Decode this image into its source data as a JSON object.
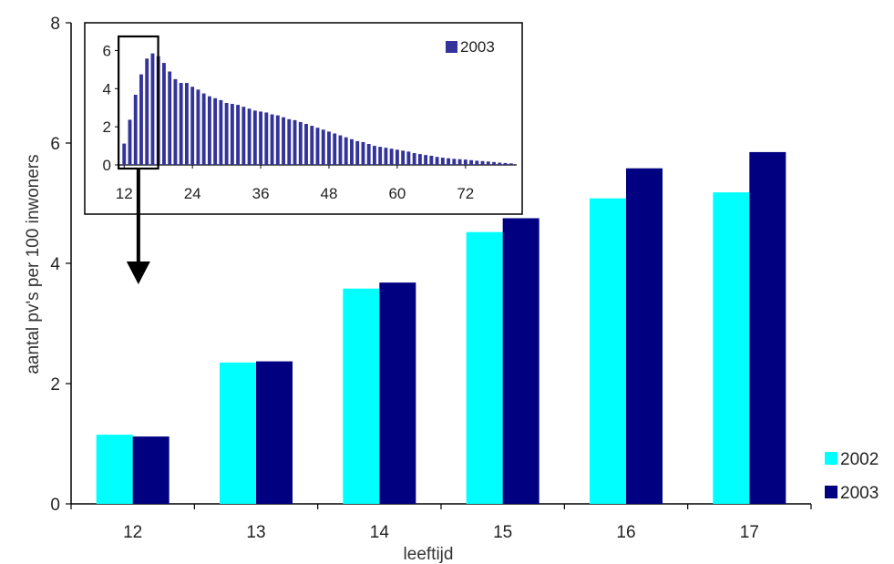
{
  "chart_data": [
    {
      "type": "bar",
      "categories": [
        "12",
        "13",
        "14",
        "15",
        "16",
        "17"
      ],
      "series": [
        {
          "name": "2002",
          "color": "#00FFFF",
          "values": [
            1.15,
            2.35,
            3.58,
            4.52,
            5.08,
            5.18
          ]
        },
        {
          "name": "2003",
          "color": "#000080",
          "values": [
            1.12,
            2.37,
            3.68,
            4.75,
            5.58,
            5.85
          ]
        }
      ],
      "xlabel": "leeftijd",
      "ylabel": "aantal pv's per 100 inwoners",
      "ylim": [
        0,
        8
      ],
      "yticks": [
        "0",
        "2",
        "4",
        "6",
        "8"
      ],
      "grid": false,
      "legend": "bottom-right"
    },
    {
      "type": "bar",
      "inset": true,
      "legend": "top-right",
      "series": [
        {
          "name": "2003",
          "color": "#333399",
          "x": [
            12,
            13,
            14,
            15,
            16,
            17,
            18,
            19,
            20,
            21,
            22,
            23,
            24,
            25,
            26,
            27,
            28,
            29,
            30,
            31,
            32,
            33,
            34,
            35,
            36,
            37,
            38,
            39,
            40,
            41,
            42,
            43,
            44,
            45,
            46,
            47,
            48,
            49,
            50,
            51,
            52,
            53,
            54,
            55,
            56,
            57,
            58,
            59,
            60,
            61,
            62,
            63,
            64,
            65,
            66,
            67,
            68,
            69,
            70,
            71,
            72,
            73,
            74,
            75,
            76,
            77,
            78,
            79,
            80
          ],
          "values": [
            1.12,
            2.37,
            3.68,
            4.75,
            5.58,
            5.85,
            5.7,
            5.35,
            4.9,
            4.5,
            4.3,
            4.3,
            4.1,
            3.95,
            3.75,
            3.6,
            3.5,
            3.4,
            3.25,
            3.2,
            3.15,
            3.05,
            2.95,
            2.85,
            2.8,
            2.75,
            2.65,
            2.6,
            2.5,
            2.4,
            2.35,
            2.25,
            2.15,
            2.05,
            1.95,
            1.85,
            1.75,
            1.65,
            1.55,
            1.45,
            1.35,
            1.25,
            1.2,
            1.1,
            1.0,
            0.95,
            0.9,
            0.85,
            0.8,
            0.75,
            0.7,
            0.62,
            0.57,
            0.52,
            0.48,
            0.42,
            0.38,
            0.35,
            0.32,
            0.3,
            0.28,
            0.25,
            0.22,
            0.2,
            0.18,
            0.15,
            0.12,
            0.1,
            0.08
          ]
        }
      ],
      "xticks": [
        "12",
        "24",
        "36",
        "48",
        "60",
        "72"
      ],
      "yticks": [
        "0",
        "2",
        "4",
        "6"
      ],
      "ylim": [
        0,
        6.5
      ],
      "highlight_range": [
        12,
        17
      ]
    }
  ]
}
